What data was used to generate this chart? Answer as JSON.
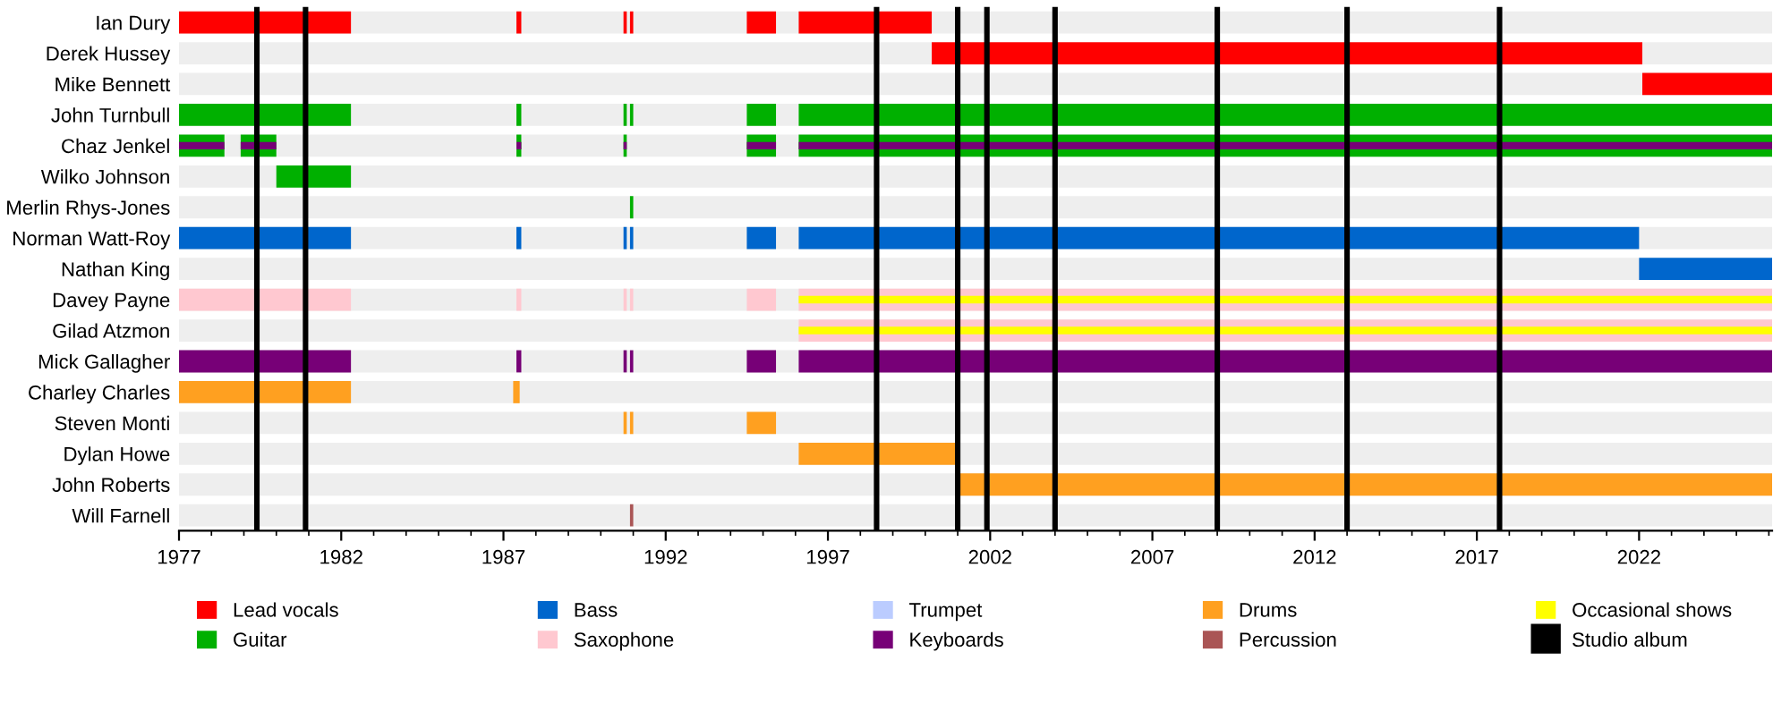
{
  "chart_data": {
    "type": "bar",
    "orientation": "horizontal",
    "grid": false,
    "legend": "bottom",
    "categories": [
      "Ian Dury",
      "Derek Hussey",
      "Mike Bennett",
      "John Turnbull",
      "Chaz Jenkel",
      "Wilko Johnson",
      "Merlin Rhys-Jones",
      "Norman Watt-Roy",
      "Nathan King",
      "Davey Payne",
      "Gilad Atzmon",
      "Mick Gallagher",
      "Charley Charles",
      "Steven Monti",
      "Dylan Howe",
      "John Roberts",
      "Will Farnell"
    ],
    "xlim": [
      1977,
      2026.1
    ],
    "xticks": [
      1977,
      1982,
      1987,
      1992,
      1997,
      2002,
      2007,
      2012,
      2017,
      2022
    ],
    "series": [
      {
        "name": "Lead vocals",
        "color": "#ff0000",
        "base": [
          1977,
          2000.2,
          2022.1,
          null,
          null,
          null,
          null,
          null,
          null,
          null,
          null,
          null,
          null,
          null,
          null,
          null,
          null
        ],
        "values": [
          5.3,
          21.9,
          4.0,
          null,
          null,
          null,
          null,
          null,
          null,
          null,
          null,
          null,
          null,
          null,
          null,
          null,
          null
        ]
      },
      {
        "color": "#ff0000",
        "base": [
          1987.4,
          null,
          null,
          null,
          null,
          null,
          null,
          null,
          null,
          null,
          null,
          null,
          null,
          null,
          null,
          null,
          null
        ],
        "values": [
          0.15,
          null,
          null,
          null,
          null,
          null,
          null,
          null,
          null,
          null,
          null,
          null,
          null,
          null,
          null,
          null,
          null
        ]
      },
      {
        "color": "#ff0000",
        "base": [
          1990.7,
          null,
          null,
          null,
          null,
          null,
          null,
          null,
          null,
          null,
          null,
          null,
          null,
          null,
          null,
          null,
          null
        ],
        "values": [
          0.1,
          null,
          null,
          null,
          null,
          null,
          null,
          null,
          null,
          null,
          null,
          null,
          null,
          null,
          null,
          null,
          null
        ]
      },
      {
        "color": "#ff0000",
        "base": [
          1990.9,
          null,
          null,
          null,
          null,
          null,
          null,
          null,
          null,
          null,
          null,
          null,
          null,
          null,
          null,
          null,
          null
        ],
        "values": [
          0.1,
          null,
          null,
          null,
          null,
          null,
          null,
          null,
          null,
          null,
          null,
          null,
          null,
          null,
          null,
          null,
          null
        ]
      },
      {
        "color": "#ff0000",
        "base": [
          1994.5,
          null,
          null,
          null,
          null,
          null,
          null,
          null,
          null,
          null,
          null,
          null,
          null,
          null,
          null,
          null,
          null
        ],
        "values": [
          0.9,
          null,
          null,
          null,
          null,
          null,
          null,
          null,
          null,
          null,
          null,
          null,
          null,
          null,
          null,
          null,
          null
        ]
      },
      {
        "color": "#ff0000",
        "base": [
          1996.1,
          null,
          null,
          null,
          null,
          null,
          null,
          null,
          null,
          null,
          null,
          null,
          null,
          null,
          null,
          null,
          null
        ],
        "values": [
          4.1,
          null,
          null,
          null,
          null,
          null,
          null,
          null,
          null,
          null,
          null,
          null,
          null,
          null,
          null,
          null,
          null
        ]
      },
      {
        "name": "Guitar",
        "color": "#00b000",
        "base": [
          null,
          null,
          null,
          1977,
          1977,
          1980.0,
          1990.9,
          null,
          null,
          null,
          null,
          null,
          null,
          null,
          null,
          null,
          null
        ],
        "values": [
          null,
          null,
          null,
          5.3,
          1.4,
          2.3,
          0.1,
          null,
          null,
          null,
          null,
          null,
          null,
          null,
          null,
          null,
          null
        ]
      },
      {
        "color": "#00b000",
        "base": [
          null,
          null,
          null,
          1987.4,
          1978.9,
          null,
          null,
          null,
          null,
          null,
          null,
          null,
          null,
          null,
          null,
          null,
          null
        ],
        "values": [
          null,
          null,
          null,
          0.15,
          1.1,
          null,
          null,
          null,
          null,
          null,
          null,
          null,
          null,
          null,
          null,
          null,
          null
        ]
      },
      {
        "color": "#00b000",
        "base": [
          null,
          null,
          null,
          1990.7,
          1987.4,
          null,
          null,
          null,
          null,
          null,
          null,
          null,
          null,
          null,
          null,
          null,
          null
        ],
        "values": [
          null,
          null,
          null,
          0.1,
          0.15,
          null,
          null,
          null,
          null,
          null,
          null,
          null,
          null,
          null,
          null,
          null,
          null
        ]
      },
      {
        "color": "#00b000",
        "base": [
          null,
          null,
          null,
          1990.9,
          1990.7,
          null,
          null,
          null,
          null,
          null,
          null,
          null,
          null,
          null,
          null,
          null,
          null
        ],
        "values": [
          null,
          null,
          null,
          0.1,
          0.1,
          null,
          null,
          null,
          null,
          null,
          null,
          null,
          null,
          null,
          null,
          null,
          null
        ]
      },
      {
        "color": "#00b000",
        "base": [
          null,
          null,
          null,
          1994.5,
          1994.5,
          null,
          null,
          null,
          null,
          null,
          null,
          null,
          null,
          null,
          null,
          null,
          null
        ],
        "values": [
          null,
          null,
          null,
          0.9,
          0.9,
          null,
          null,
          null,
          null,
          null,
          null,
          null,
          null,
          null,
          null,
          null,
          null
        ]
      },
      {
        "color": "#00b000",
        "base": [
          null,
          null,
          null,
          1996.1,
          1996.1,
          null,
          null,
          null,
          null,
          null,
          null,
          null,
          null,
          null,
          null,
          null,
          null
        ],
        "values": [
          null,
          null,
          null,
          30.0,
          30.0,
          null,
          null,
          null,
          null,
          null,
          null,
          null,
          null,
          null,
          null,
          null,
          null
        ]
      },
      {
        "name": "Bass",
        "color": "#0066cc",
        "base": [
          null,
          null,
          null,
          null,
          null,
          null,
          null,
          1977,
          2022.0,
          null,
          null,
          null,
          null,
          null,
          null,
          null,
          null
        ],
        "values": [
          null,
          null,
          null,
          null,
          null,
          null,
          null,
          5.3,
          4.1,
          null,
          null,
          null,
          null,
          null,
          null,
          null,
          null
        ]
      },
      {
        "color": "#0066cc",
        "base": [
          null,
          null,
          null,
          null,
          null,
          null,
          null,
          1987.4,
          null,
          null,
          null,
          null,
          null,
          null,
          null,
          null,
          null
        ],
        "values": [
          null,
          null,
          null,
          null,
          null,
          null,
          null,
          0.15,
          null,
          null,
          null,
          null,
          null,
          null,
          null,
          null,
          null
        ]
      },
      {
        "color": "#0066cc",
        "base": [
          null,
          null,
          null,
          null,
          null,
          null,
          null,
          1990.7,
          null,
          null,
          null,
          null,
          null,
          null,
          null,
          null,
          null
        ],
        "values": [
          null,
          null,
          null,
          null,
          null,
          null,
          null,
          0.1,
          null,
          null,
          null,
          null,
          null,
          null,
          null,
          null,
          null
        ]
      },
      {
        "color": "#0066cc",
        "base": [
          null,
          null,
          null,
          null,
          null,
          null,
          null,
          1990.9,
          null,
          null,
          null,
          null,
          null,
          null,
          null,
          null,
          null
        ],
        "values": [
          null,
          null,
          null,
          null,
          null,
          null,
          null,
          0.1,
          null,
          null,
          null,
          null,
          null,
          null,
          null,
          null,
          null
        ]
      },
      {
        "color": "#0066cc",
        "base": [
          null,
          null,
          null,
          null,
          null,
          null,
          null,
          1994.5,
          null,
          null,
          null,
          null,
          null,
          null,
          null,
          null,
          null
        ],
        "values": [
          null,
          null,
          null,
          null,
          null,
          null,
          null,
          0.9,
          null,
          null,
          null,
          null,
          null,
          null,
          null,
          null,
          null
        ]
      },
      {
        "color": "#0066cc",
        "base": [
          null,
          null,
          null,
          null,
          null,
          null,
          null,
          1996.1,
          null,
          null,
          null,
          null,
          null,
          null,
          null,
          null,
          null
        ],
        "values": [
          null,
          null,
          null,
          null,
          null,
          null,
          null,
          25.9,
          null,
          null,
          null,
          null,
          null,
          null,
          null,
          null,
          null
        ]
      },
      {
        "name": "Saxophone",
        "color": "#ffc8d0",
        "base": [
          null,
          null,
          null,
          null,
          null,
          null,
          null,
          null,
          null,
          1977,
          1996.1,
          null,
          null,
          null,
          null,
          null,
          null
        ],
        "values": [
          null,
          null,
          null,
          null,
          null,
          null,
          null,
          null,
          null,
          5.3,
          30.0,
          null,
          null,
          null,
          null,
          null,
          null
        ]
      },
      {
        "color": "#ffc8d0",
        "base": [
          null,
          null,
          null,
          null,
          null,
          null,
          null,
          null,
          null,
          1987.4,
          null,
          null,
          null,
          null,
          null,
          null,
          null
        ],
        "values": [
          null,
          null,
          null,
          null,
          null,
          null,
          null,
          null,
          null,
          0.15,
          null,
          null,
          null,
          null,
          null,
          null,
          null
        ]
      },
      {
        "color": "#ffc8d0",
        "base": [
          null,
          null,
          null,
          null,
          null,
          null,
          null,
          null,
          null,
          1990.7,
          null,
          null,
          null,
          null,
          null,
          null,
          null
        ],
        "values": [
          null,
          null,
          null,
          null,
          null,
          null,
          null,
          null,
          null,
          0.1,
          null,
          null,
          null,
          null,
          null,
          null,
          null
        ]
      },
      {
        "color": "#ffc8d0",
        "base": [
          null,
          null,
          null,
          null,
          null,
          null,
          null,
          null,
          null,
          1990.9,
          null,
          null,
          null,
          null,
          null,
          null,
          null
        ],
        "values": [
          null,
          null,
          null,
          null,
          null,
          null,
          null,
          null,
          null,
          0.1,
          null,
          null,
          null,
          null,
          null,
          null,
          null
        ]
      },
      {
        "color": "#ffc8d0",
        "base": [
          null,
          null,
          null,
          null,
          null,
          null,
          null,
          null,
          null,
          1994.5,
          null,
          null,
          null,
          null,
          null,
          null,
          null
        ],
        "values": [
          null,
          null,
          null,
          null,
          null,
          null,
          null,
          null,
          null,
          0.9,
          null,
          null,
          null,
          null,
          null,
          null,
          null
        ]
      },
      {
        "color": "#ffc8d0",
        "base": [
          null,
          null,
          null,
          null,
          null,
          null,
          null,
          null,
          null,
          1996.1,
          null,
          null,
          null,
          null,
          null,
          null,
          null
        ],
        "values": [
          null,
          null,
          null,
          null,
          null,
          null,
          null,
          null,
          null,
          30.0,
          null,
          null,
          null,
          null,
          null,
          null,
          null
        ]
      },
      {
        "name": "Trumpet",
        "color": "#bbccff",
        "base": [
          null,
          null,
          null,
          null,
          null,
          null,
          null,
          null,
          null,
          null,
          null,
          null,
          null,
          null,
          null,
          null,
          null
        ],
        "values": [
          null,
          null,
          null,
          null,
          null,
          null,
          null,
          null,
          null,
          null,
          null,
          null,
          null,
          null,
          null,
          null,
          null
        ]
      },
      {
        "name": "Keyboards",
        "color": "#770077",
        "base": [
          null,
          null,
          null,
          null,
          1977,
          null,
          null,
          null,
          null,
          null,
          null,
          1977,
          null,
          null,
          null,
          null,
          null
        ],
        "values": [
          null,
          null,
          null,
          null,
          1.4,
          null,
          null,
          null,
          null,
          null,
          null,
          5.3,
          null,
          null,
          null,
          null,
          null
        ]
      },
      {
        "color": "#770077",
        "base": [
          null,
          null,
          null,
          null,
          1978.9,
          null,
          null,
          null,
          null,
          null,
          null,
          1987.4,
          null,
          null,
          null,
          null,
          null
        ],
        "values": [
          null,
          null,
          null,
          null,
          1.1,
          null,
          null,
          null,
          null,
          null,
          null,
          0.15,
          null,
          null,
          null,
          null,
          null
        ]
      },
      {
        "color": "#770077",
        "base": [
          null,
          null,
          null,
          null,
          1987.4,
          null,
          null,
          null,
          null,
          null,
          null,
          1990.7,
          null,
          null,
          null,
          null,
          null
        ],
        "values": [
          null,
          null,
          null,
          null,
          0.15,
          null,
          null,
          null,
          null,
          null,
          null,
          0.1,
          null,
          null,
          null,
          null,
          null
        ]
      },
      {
        "color": "#770077",
        "base": [
          null,
          null,
          null,
          null,
          1990.7,
          null,
          null,
          null,
          null,
          null,
          null,
          1990.9,
          null,
          null,
          null,
          null,
          null
        ],
        "values": [
          null,
          null,
          null,
          null,
          0.1,
          null,
          null,
          null,
          null,
          null,
          null,
          0.1,
          null,
          null,
          null,
          null,
          null
        ]
      },
      {
        "color": "#770077",
        "base": [
          null,
          null,
          null,
          null,
          1994.5,
          null,
          null,
          null,
          null,
          null,
          null,
          1994.5,
          null,
          null,
          null,
          null,
          null
        ],
        "values": [
          null,
          null,
          null,
          null,
          0.9,
          null,
          null,
          null,
          null,
          null,
          null,
          0.9,
          null,
          null,
          null,
          null,
          null
        ]
      },
      {
        "color": "#770077",
        "base": [
          null,
          null,
          null,
          null,
          1996.1,
          null,
          null,
          null,
          null,
          null,
          null,
          1996.1,
          null,
          null,
          null,
          null,
          null
        ],
        "values": [
          null,
          null,
          null,
          null,
          30.0,
          null,
          null,
          null,
          null,
          null,
          null,
          30.0,
          null,
          null,
          null,
          null,
          null
        ]
      },
      {
        "name": "Drums",
        "color": "#ffa020",
        "base": [
          null,
          null,
          null,
          null,
          null,
          null,
          null,
          null,
          null,
          null,
          null,
          null,
          1977,
          1990.7,
          1996.1,
          2001.0,
          null
        ],
        "values": [
          null,
          null,
          null,
          null,
          null,
          null,
          null,
          null,
          null,
          null,
          null,
          null,
          5.3,
          0.1,
          4.9,
          25.1,
          null
        ]
      },
      {
        "color": "#ffa020",
        "base": [
          null,
          null,
          null,
          null,
          null,
          null,
          null,
          null,
          null,
          null,
          null,
          null,
          1987.3,
          1990.9,
          null,
          null,
          null
        ],
        "values": [
          null,
          null,
          null,
          null,
          null,
          null,
          null,
          null,
          null,
          null,
          null,
          null,
          0.2,
          0.1,
          null,
          null,
          null
        ]
      },
      {
        "color": "#ffa020",
        "base": [
          null,
          null,
          null,
          null,
          null,
          null,
          null,
          null,
          null,
          null,
          null,
          null,
          null,
          1994.5,
          null,
          null,
          null
        ],
        "values": [
          null,
          null,
          null,
          null,
          null,
          null,
          null,
          null,
          null,
          null,
          null,
          null,
          null,
          0.9,
          null,
          null,
          null
        ]
      },
      {
        "name": "Percussion",
        "color": "#aa5555",
        "base": [
          null,
          null,
          null,
          null,
          null,
          null,
          null,
          null,
          null,
          null,
          null,
          null,
          null,
          null,
          null,
          null,
          1990.9
        ],
        "values": [
          null,
          null,
          null,
          null,
          null,
          null,
          null,
          null,
          null,
          null,
          null,
          null,
          null,
          null,
          null,
          null,
          0.1
        ]
      },
      {
        "name": "Occasional shows",
        "color": "#ffff00",
        "base": [
          null,
          null,
          null,
          null,
          null,
          null,
          null,
          null,
          null,
          1996.1,
          1996.1,
          null,
          null,
          null,
          null,
          null,
          null
        ],
        "values": [
          null,
          null,
          null,
          null,
          null,
          null,
          null,
          null,
          null,
          30.0,
          30.0,
          null,
          null,
          null,
          null,
          null,
          null
        ]
      }
    ],
    "ref_lines": [
      {
        "axis": "x",
        "value": 1979.4,
        "color": "#000000",
        "label": "Studio album"
      },
      {
        "axis": "x",
        "value": 1980.9,
        "color": "#000000"
      },
      {
        "axis": "x",
        "value": 1998.5,
        "color": "#000000"
      },
      {
        "axis": "x",
        "value": 2001.0,
        "color": "#000000"
      },
      {
        "axis": "x",
        "value": 2001.9,
        "color": "#000000"
      },
      {
        "axis": "x",
        "value": 2004.0,
        "color": "#000000"
      },
      {
        "axis": "x",
        "value": 2009.0,
        "color": "#000000"
      },
      {
        "axis": "x",
        "value": 2013.0,
        "color": "#000000"
      },
      {
        "axis": "x",
        "value": 2017.7,
        "color": "#000000"
      }
    ]
  }
}
